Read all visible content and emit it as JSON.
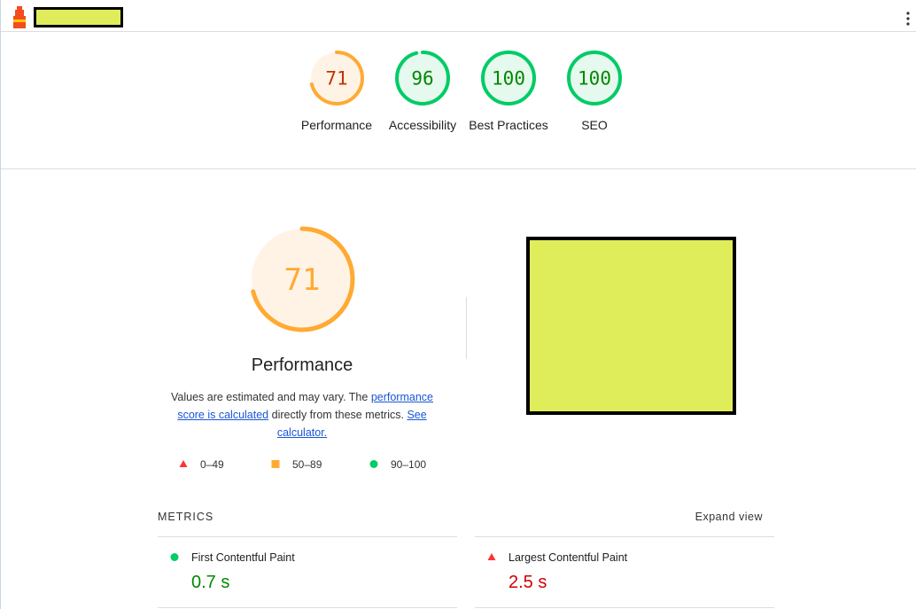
{
  "gauges": [
    {
      "score": 71,
      "label": "Performance",
      "color": "#fa3",
      "text_color": "#c33300",
      "bg": "#fff3e6"
    },
    {
      "score": 96,
      "label": "Accessibility",
      "color": "#0c6",
      "text_color": "#008800",
      "bg": "#e6f9ee"
    },
    {
      "score": 100,
      "label": "Best Practices",
      "color": "#0c6",
      "text_color": "#008800",
      "bg": "#e6f9ee"
    },
    {
      "score": 100,
      "label": "SEO",
      "color": "#0c6",
      "text_color": "#008800",
      "bg": "#e6f9ee"
    }
  ],
  "performance": {
    "score": 71,
    "title": "Performance",
    "color": "#fa3",
    "bg": "#fff3e6",
    "description": [
      "Values are estimated and may vary. The ",
      "performance score is calculated",
      " directly from these metrics. ",
      "See calculator."
    ],
    "legend": [
      "0–49",
      "50–89",
      "90–100"
    ]
  },
  "metrics": {
    "heading": "METRICS",
    "toggle": "Expand view",
    "items": [
      {
        "name": "First Contentful Paint",
        "value": "0.7 s",
        "color": "#0c6",
        "value_color": "#080"
      },
      {
        "name": "Largest Contentful Paint",
        "value": "2.5 s",
        "color": "#f33",
        "value_color": "#c00"
      }
    ]
  }
}
